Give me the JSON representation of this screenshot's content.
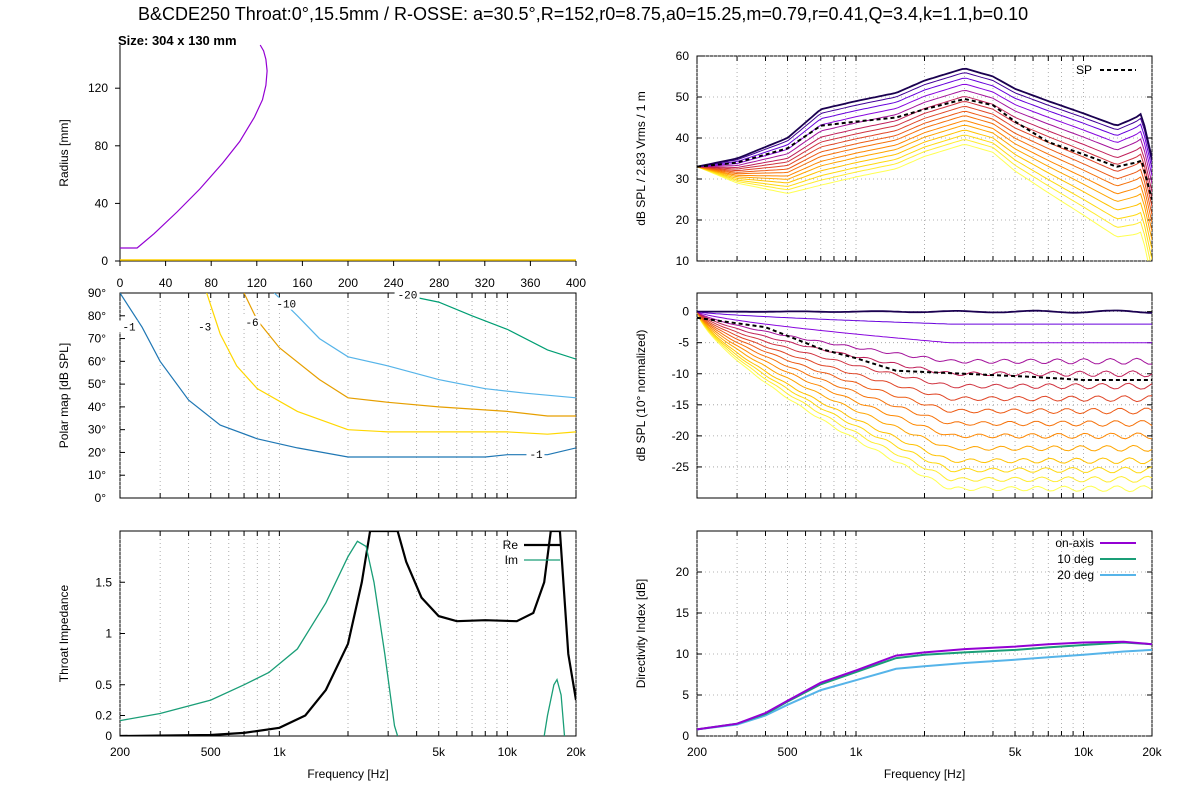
{
  "header": {
    "title": "B&CDE250 Throat:0°,15.5mm / R-OSSE: a=30.5°,R=152,r0=8.75,a0=15.25,m=0.79,r=0.41,Q=3.4,k=1.1,b=0.10",
    "size": "Size: 304 x 130 mm"
  },
  "chart_data": [
    {
      "id": "profile",
      "type": "line",
      "ylabel": "Radius [mm]",
      "xlim": [
        0,
        400
      ],
      "ylim": [
        0,
        150
      ],
      "xticks": [
        0,
        40,
        80,
        120,
        160,
        200,
        240,
        280,
        320,
        360,
        400
      ],
      "yticks": [
        0,
        40,
        80,
        120
      ],
      "color": "#9400d3",
      "points": [
        [
          0,
          9
        ],
        [
          15,
          9
        ],
        [
          30,
          19
        ],
        [
          50,
          34
        ],
        [
          70,
          50
        ],
        [
          90,
          68
        ],
        [
          105,
          83
        ],
        [
          118,
          100
        ],
        [
          125,
          112
        ],
        [
          128,
          122
        ],
        [
          129,
          132
        ],
        [
          128,
          140
        ],
        [
          126,
          146
        ],
        [
          123,
          150
        ]
      ]
    },
    {
      "id": "polar_map",
      "type": "line",
      "ylabel": "Polar map [dB SPL]",
      "xscale": "log",
      "xlim": [
        200,
        20000
      ],
      "ylim": [
        0,
        90
      ],
      "yticks": [
        "0°",
        "10°",
        "20°",
        "30°",
        "40°",
        "50°",
        "60°",
        "70°",
        "80°",
        "90°"
      ],
      "contours": [
        {
          "label": "-1",
          "color": "#1f77b4",
          "points": [
            [
              200,
              90
            ],
            [
              250,
              75
            ],
            [
              300,
              60
            ],
            [
              400,
              43
            ],
            [
              550,
              32
            ],
            [
              800,
              26
            ],
            [
              1200,
              22
            ],
            [
              2000,
              18
            ],
            [
              3000,
              18
            ],
            [
              5000,
              18
            ],
            [
              8000,
              18
            ],
            [
              10000,
              19
            ],
            [
              15000,
              19
            ],
            [
              20000,
              22
            ]
          ]
        },
        {
          "label": "-3",
          "color": "#ffd700",
          "points": [
            [
              480,
              90
            ],
            [
              550,
              72
            ],
            [
              650,
              58
            ],
            [
              800,
              48
            ],
            [
              1200,
              38
            ],
            [
              2000,
              30
            ],
            [
              3000,
              29
            ],
            [
              5000,
              29
            ],
            [
              10000,
              29
            ],
            [
              15000,
              28
            ],
            [
              20000,
              29
            ]
          ]
        },
        {
          "label": "-6",
          "color": "#e69f00",
          "points": [
            [
              700,
              90
            ],
            [
              800,
              78
            ],
            [
              1000,
              66
            ],
            [
              1500,
              52
            ],
            [
              2000,
              44
            ],
            [
              3000,
              42
            ],
            [
              5000,
              40
            ],
            [
              10000,
              38
            ],
            [
              15000,
              36
            ],
            [
              20000,
              36
            ]
          ]
        },
        {
          "label": "-10",
          "color": "#56b4e9",
          "points": [
            [
              950,
              90
            ],
            [
              1200,
              80
            ],
            [
              1500,
              70
            ],
            [
              2000,
              62
            ],
            [
              3000,
              58
            ],
            [
              5000,
              52
            ],
            [
              8000,
              48
            ],
            [
              12000,
              46
            ],
            [
              20000,
              44
            ]
          ]
        },
        {
          "label": "-20",
          "color": "#009e73",
          "points": [
            [
              3200,
              90
            ],
            [
              5000,
              86
            ],
            [
              7000,
              80
            ],
            [
              10000,
              74
            ],
            [
              15000,
              65
            ],
            [
              20000,
              61
            ]
          ]
        }
      ],
      "contour_labels": [
        {
          "text": "-1",
          "x": 205,
          "y": 74
        },
        {
          "text": "-3",
          "x": 440,
          "y": 74
        },
        {
          "text": "-6",
          "x": 710,
          "y": 76
        },
        {
          "text": "-10",
          "x": 970,
          "y": 84
        },
        {
          "text": "-20",
          "x": 3300,
          "y": 88
        },
        {
          "text": "-1",
          "x": 12500,
          "y": 18
        }
      ]
    },
    {
      "id": "impedance",
      "type": "line",
      "ylabel": "Throat Impedance",
      "xlabel": "Frequency [Hz]",
      "xscale": "log",
      "xlim": [
        200,
        20000
      ],
      "ylim": [
        0,
        2
      ],
      "xticks": [
        "200",
        "500",
        "1k",
        "5k",
        "10k",
        "20k"
      ],
      "yticks": [
        "0",
        "0.2",
        "0.5",
        "1",
        "1.5"
      ],
      "legend_position": "top-right",
      "series": [
        {
          "name": "Re",
          "color": "#000000",
          "points": [
            [
              200,
              0
            ],
            [
              500,
              0.01
            ],
            [
              700,
              0.03
            ],
            [
              1000,
              0.08
            ],
            [
              1300,
              0.2
            ],
            [
              1600,
              0.45
            ],
            [
              2000,
              0.9
            ],
            [
              2300,
              1.5
            ],
            [
              2500,
              2.0
            ],
            [
              3300,
              2.0
            ],
            [
              3600,
              1.7
            ],
            [
              4200,
              1.35
            ],
            [
              5000,
              1.17
            ],
            [
              6000,
              1.12
            ],
            [
              8000,
              1.13
            ],
            [
              11000,
              1.12
            ],
            [
              13000,
              1.2
            ],
            [
              14500,
              1.5
            ],
            [
              15500,
              2.0
            ],
            [
              17000,
              2.0
            ],
            [
              18500,
              0.8
            ],
            [
              20000,
              0.35
            ]
          ]
        },
        {
          "name": "Im",
          "color": "#1a9e77",
          "points": [
            [
              200,
              0.15
            ],
            [
              300,
              0.22
            ],
            [
              500,
              0.35
            ],
            [
              700,
              0.5
            ],
            [
              900,
              0.62
            ],
            [
              1200,
              0.85
            ],
            [
              1600,
              1.3
            ],
            [
              2000,
              1.75
            ],
            [
              2200,
              1.9
            ],
            [
              2400,
              1.85
            ],
            [
              2600,
              1.5
            ],
            [
              2900,
              0.8
            ],
            [
              3200,
              0.1
            ],
            [
              3300,
              0
            ]
          ]
        },
        {
          "name": "",
          "color": "#1a9e77",
          "points": [
            [
              14500,
              0
            ],
            [
              15000,
              0.2
            ],
            [
              16000,
              0.5
            ],
            [
              16500,
              0.55
            ],
            [
              17200,
              0.4
            ],
            [
              17800,
              0
            ]
          ]
        }
      ]
    },
    {
      "id": "spl",
      "type": "line",
      "ylabel": "dB SPL / 2.83 Vrms / 1 m",
      "xscale": "log",
      "xlim": [
        200,
        20000
      ],
      "ylim": [
        10,
        60
      ],
      "yticks": [
        10,
        20,
        30,
        40,
        50,
        60
      ],
      "legend_position": "top-right",
      "legend": [
        "SP"
      ],
      "base_curve": [
        [
          200,
          33
        ],
        [
          300,
          35
        ],
        [
          500,
          40
        ],
        [
          700,
          47
        ],
        [
          1000,
          49
        ],
        [
          1500,
          51
        ],
        [
          2000,
          54
        ],
        [
          3000,
          57
        ],
        [
          4000,
          55
        ],
        [
          5000,
          52
        ],
        [
          7000,
          49
        ],
        [
          10000,
          46
        ],
        [
          14000,
          43
        ],
        [
          17000,
          45
        ],
        [
          18000,
          46
        ],
        [
          20000,
          35
        ]
      ],
      "off_axis_drop_db": [
        0,
        1,
        2.3,
        3.8,
        5.3,
        6.8,
        8,
        9.2,
        10.4,
        11.5,
        12.7,
        13.8,
        15,
        16.2,
        17.3,
        18.5
      ],
      "sp_curve": [
        [
          200,
          33
        ],
        [
          300,
          34
        ],
        [
          500,
          37.5
        ],
        [
          700,
          43
        ],
        [
          1000,
          44
        ],
        [
          1500,
          45
        ],
        [
          2000,
          47
        ],
        [
          3000,
          49.5
        ],
        [
          4000,
          48
        ],
        [
          5000,
          44
        ],
        [
          7000,
          39
        ],
        [
          10000,
          36
        ],
        [
          14000,
          33
        ],
        [
          17000,
          34
        ],
        [
          18000,
          34.5
        ],
        [
          20000,
          25
        ]
      ]
    },
    {
      "id": "normalized",
      "type": "line",
      "ylabel": "dB SPL (10° normalized)",
      "xscale": "log",
      "xlim": [
        200,
        20000
      ],
      "ylim": [
        -30,
        3
      ],
      "yticks": [
        -25,
        -20,
        -15,
        -10,
        -5,
        0
      ],
      "final_drops": [
        0,
        0,
        2,
        5,
        8,
        10,
        12,
        14,
        16,
        18,
        20,
        22,
        24,
        25.5,
        27,
        28.5
      ],
      "sp_curve": [
        [
          200,
          -1
        ],
        [
          400,
          -2.5
        ],
        [
          700,
          -6
        ],
        [
          1000,
          -7.5
        ],
        [
          1500,
          -9.5
        ],
        [
          3000,
          -10
        ],
        [
          6000,
          -10.5
        ],
        [
          10000,
          -11
        ],
        [
          20000,
          -11
        ]
      ]
    },
    {
      "id": "directivity",
      "type": "line",
      "ylabel": "Directivity Index [dB]",
      "xlabel": "Frequency [Hz]",
      "xscale": "log",
      "xlim": [
        200,
        20000
      ],
      "ylim": [
        0,
        25
      ],
      "xticks": [
        "200",
        "500",
        "1k",
        "5k",
        "10k",
        "20k"
      ],
      "yticks": [
        0,
        5,
        10,
        15,
        20
      ],
      "legend_position": "top-right",
      "series": [
        {
          "name": "on-axis",
          "color": "#9400d3",
          "points": [
            [
              200,
              0.8
            ],
            [
              300,
              1.5
            ],
            [
              400,
              2.8
            ],
            [
              500,
              4.3
            ],
            [
              700,
              6.5
            ],
            [
              1000,
              8
            ],
            [
              1500,
              9.8
            ],
            [
              2000,
              10.2
            ],
            [
              3000,
              10.6
            ],
            [
              5000,
              10.9
            ],
            [
              7000,
              11.2
            ],
            [
              10000,
              11.4
            ],
            [
              15000,
              11.5
            ],
            [
              20000,
              11.2
            ]
          ]
        },
        {
          "name": "10 deg",
          "color": "#1a9e77",
          "points": [
            [
              200,
              0.8
            ],
            [
              300,
              1.5
            ],
            [
              400,
              2.7
            ],
            [
              500,
              4.2
            ],
            [
              700,
              6.3
            ],
            [
              1000,
              7.8
            ],
            [
              1500,
              9.5
            ],
            [
              2000,
              9.9
            ],
            [
              3000,
              10.2
            ],
            [
              5000,
              10.5
            ],
            [
              7000,
              10.8
            ],
            [
              10000,
              11.1
            ],
            [
              15000,
              11.4
            ],
            [
              20000,
              11.2
            ]
          ]
        },
        {
          "name": "20 deg",
          "color": "#56b4e9",
          "points": [
            [
              200,
              0.8
            ],
            [
              300,
              1.4
            ],
            [
              400,
              2.5
            ],
            [
              500,
              3.8
            ],
            [
              700,
              5.6
            ],
            [
              1000,
              6.8
            ],
            [
              1500,
              8.2
            ],
            [
              2000,
              8.5
            ],
            [
              3000,
              8.9
            ],
            [
              5000,
              9.3
            ],
            [
              7000,
              9.6
            ],
            [
              10000,
              9.9
            ],
            [
              15000,
              10.3
            ],
            [
              20000,
              10.5
            ]
          ]
        }
      ]
    }
  ]
}
